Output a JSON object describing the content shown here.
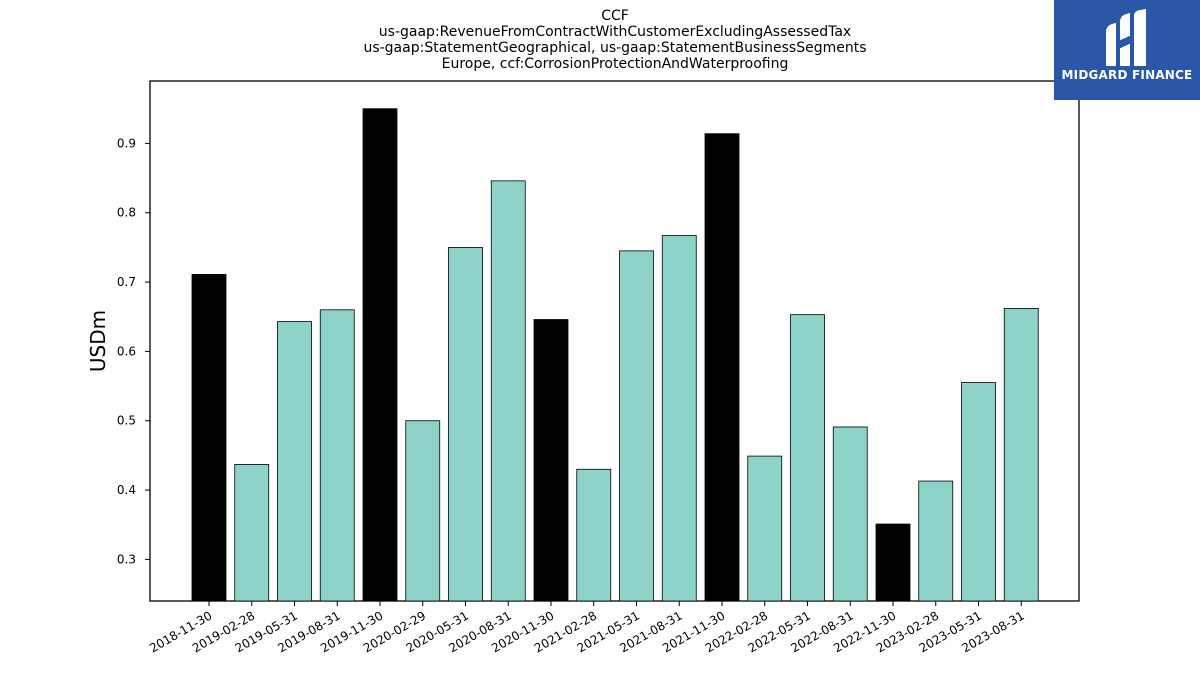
{
  "chart_data": {
    "type": "bar",
    "title_lines": [
      "CCF",
      "us-gaap:RevenueFromContractWithCustomerExcludingAssessedTax",
      "us-gaap:StatementGeographical, us-gaap:StatementBusinessSegments",
      "Europe, ccf:CorrosionProtectionAndWaterproofing"
    ],
    "xlabel": "",
    "ylabel": "USDm",
    "ylim": [
      0.24,
      0.99
    ],
    "yticks": [
      0.3,
      0.4,
      0.5,
      0.6,
      0.7,
      0.8,
      0.9
    ],
    "grid": false,
    "categories": [
      "2018-11-30",
      "2019-02-28",
      "2019-05-31",
      "2019-08-31",
      "2019-11-30",
      "2020-02-29",
      "2020-05-31",
      "2020-08-31",
      "2020-11-30",
      "2021-02-28",
      "2021-05-31",
      "2021-08-31",
      "2021-11-30",
      "2022-02-28",
      "2022-05-31",
      "2022-08-31",
      "2022-11-30",
      "2023-02-28",
      "2023-05-31",
      "2023-08-31"
    ],
    "values": [
      0.711,
      0.437,
      0.643,
      0.66,
      0.95,
      0.5,
      0.75,
      0.846,
      0.646,
      0.43,
      0.745,
      0.767,
      0.914,
      0.449,
      0.653,
      0.491,
      0.351,
      0.413,
      0.555,
      0.662
    ],
    "bar_colors": [
      "#000000",
      "#8dd3c7",
      "#8dd3c7",
      "#8dd3c7",
      "#000000",
      "#8dd3c7",
      "#8dd3c7",
      "#8dd3c7",
      "#000000",
      "#8dd3c7",
      "#8dd3c7",
      "#8dd3c7",
      "#000000",
      "#8dd3c7",
      "#8dd3c7",
      "#8dd3c7",
      "#000000",
      "#8dd3c7",
      "#8dd3c7",
      "#8dd3c7"
    ]
  },
  "logo": {
    "text": "MIDGARD FINANCE",
    "background": "#2b57a8",
    "foreground": "#ffffff"
  }
}
